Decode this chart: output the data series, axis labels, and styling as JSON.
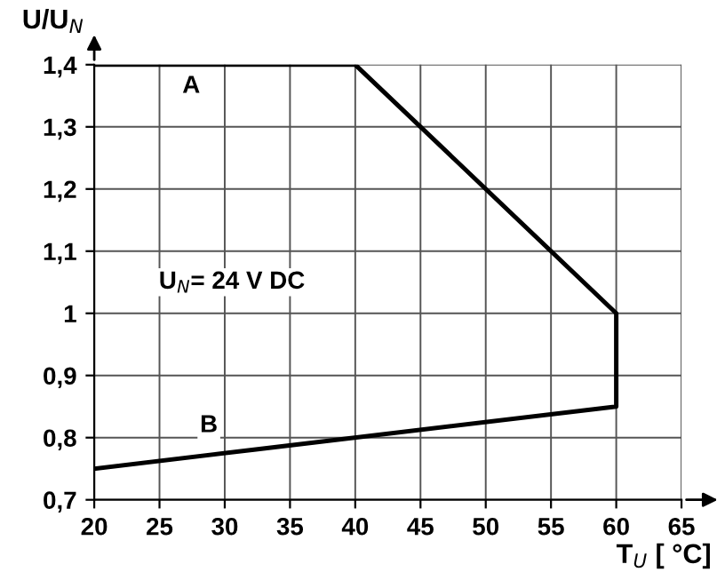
{
  "chart_data": {
    "type": "line",
    "x": [
      20,
      40,
      60,
      60,
      20
    ],
    "series": [
      {
        "color": "#000000",
        "values": [
          1.4,
          1.4,
          1.0,
          0.85,
          0.75
        ]
      }
    ],
    "xlim": [
      20,
      65
    ],
    "ylim": [
      0.7,
      1.4
    ],
    "xticks": [
      20,
      25,
      30,
      35,
      40,
      45,
      50,
      55,
      60,
      65
    ],
    "yticks": [
      {
        "value": 0.7,
        "label": "0,7"
      },
      {
        "value": 0.8,
        "label": "0,8"
      },
      {
        "value": 0.9,
        "label": "0,9"
      },
      {
        "value": 1,
        "label": "1"
      },
      {
        "value": 1.1,
        "label": "1,1"
      },
      {
        "value": 1.2,
        "label": "1,2"
      },
      {
        "value": 1.3,
        "label": "1,3"
      },
      {
        "value": 1.4,
        "label": "1,4"
      }
    ],
    "xlabel": "T$_{U}$ [ °C]",
    "ylabel": "U/U$_{N}$",
    "annotations": [
      "A",
      "B",
      "U$_{N}$= 24 V DC"
    ],
    "grid": true,
    "marker": "none",
    "line_style": "solid"
  }
}
